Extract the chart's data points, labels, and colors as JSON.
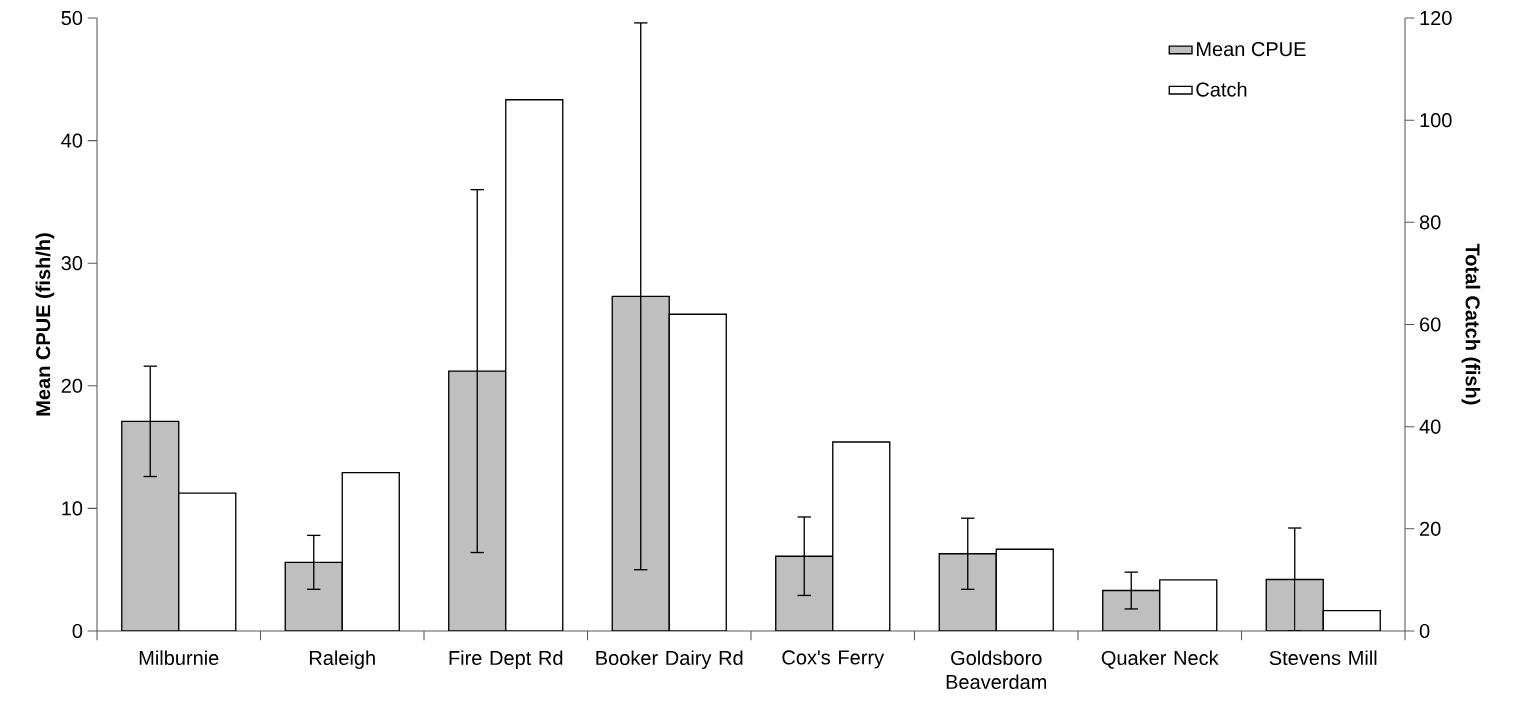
{
  "chart_data": {
    "type": "bar",
    "categories": [
      "Milburnie",
      "Raleigh",
      "Fire Dept Rd",
      "Booker Dairy Rd",
      "Cox's Ferry",
      "Goldsboro Beaverdam",
      "Quaker Neck",
      "Stevens Mill"
    ],
    "series": [
      {
        "name": "Mean CPUE",
        "color": "#bfbfbf",
        "values": [
          17.1,
          5.6,
          21.2,
          27.3,
          6.1,
          6.3,
          3.3,
          4.2
        ],
        "errors": [
          4.5,
          2.2,
          14.8,
          22.3,
          3.2,
          2.9,
          1.5,
          4.2
        ]
      },
      {
        "name": "Catch",
        "color": "#ffffff",
        "axis": "y2",
        "values": [
          27,
          31,
          104,
          62,
          37,
          16,
          10,
          4
        ]
      }
    ],
    "ylabel": "Mean CPUE (fish/h)",
    "y2label": "Total Catch (fish)",
    "ylim": [
      0,
      50
    ],
    "yticks": [
      0,
      10,
      20,
      30,
      40,
      50
    ],
    "y2lim": [
      0,
      120
    ],
    "y2ticks": [
      0,
      20,
      40,
      60,
      80,
      100,
      120
    ],
    "legend": "top right"
  }
}
